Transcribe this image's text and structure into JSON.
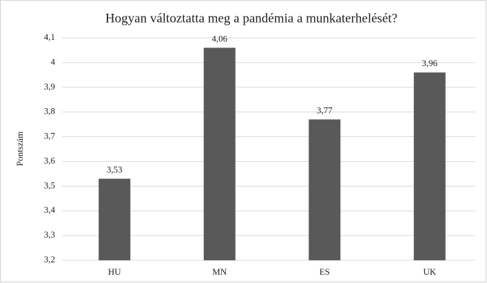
{
  "chart_data": {
    "type": "bar",
    "title": "Hogyan változtatta meg a pandémia a munkaterhelését?",
    "y_label": "Pontszám",
    "categories": [
      "HU",
      "MN",
      "ES",
      "UK"
    ],
    "values": [
      3.53,
      4.06,
      3.77,
      3.96
    ],
    "value_labels": [
      "3,53",
      "4,06",
      "3,77",
      "3,96"
    ],
    "color": "#595959",
    "ylim": [
      3.2,
      4.1
    ],
    "yticks": [
      {
        "value": 3.2,
        "label": "3,2"
      },
      {
        "value": 3.3,
        "label": "3,3"
      },
      {
        "value": 3.4,
        "label": "3,4"
      },
      {
        "value": 3.5,
        "label": "3,5"
      },
      {
        "value": 3.6,
        "label": "3,6"
      },
      {
        "value": 3.7,
        "label": "3,7"
      },
      {
        "value": 3.8,
        "label": "3,8"
      },
      {
        "value": 3.9,
        "label": "3,9"
      },
      4,
      {
        "value": 4.1,
        "label": "4,1"
      }
    ],
    "grid": true
  }
}
